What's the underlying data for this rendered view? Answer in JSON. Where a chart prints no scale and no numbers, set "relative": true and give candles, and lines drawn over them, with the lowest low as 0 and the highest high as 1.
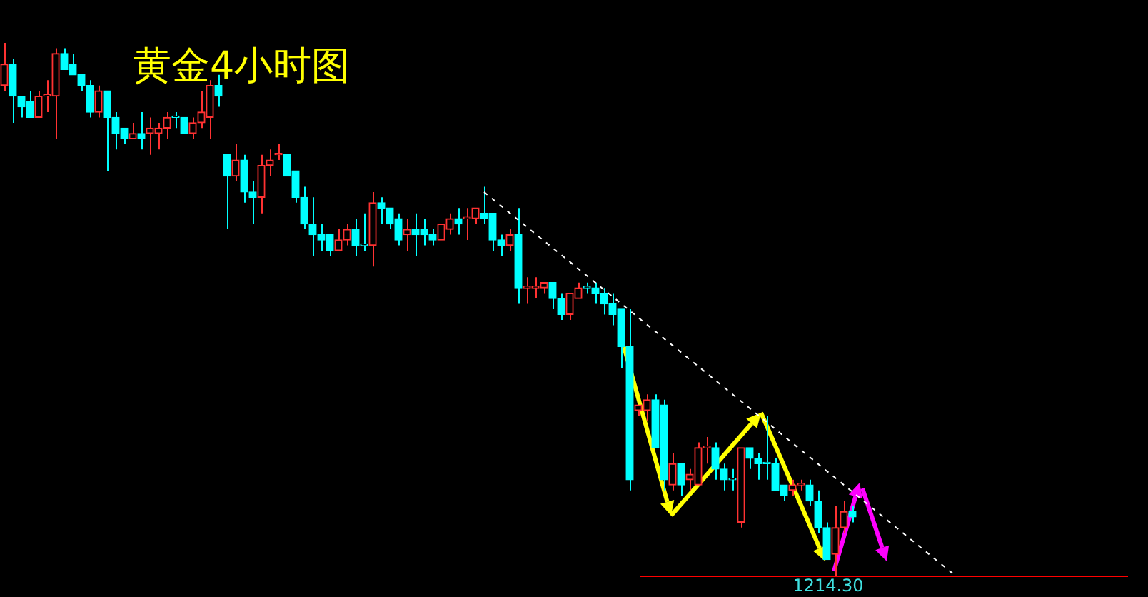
{
  "chart_data": {
    "type": "candlestick",
    "title": "黄金4小时图",
    "relative": true,
    "categories": [
      null,
      null,
      null,
      null,
      null,
      null,
      null,
      null,
      null,
      null,
      null,
      null,
      null,
      null,
      null,
      null,
      null,
      null,
      null,
      null,
      null,
      null,
      null,
      null,
      null,
      null,
      null,
      null,
      null,
      null,
      null,
      null,
      null,
      null,
      null,
      null,
      null,
      null,
      null,
      null,
      null,
      null,
      null,
      null,
      null,
      null,
      null,
      null,
      null,
      null,
      null,
      null,
      null,
      null,
      null,
      null,
      null,
      null,
      null,
      null,
      null,
      null,
      null,
      null,
      null,
      null,
      null,
      null,
      null,
      null,
      null,
      null,
      null,
      null,
      null,
      null,
      null,
      null,
      null,
      null,
      null,
      null,
      null,
      null,
      null,
      null,
      null,
      null,
      null,
      null,
      null,
      null,
      null,
      null,
      null,
      null,
      null,
      null,
      null,
      null,
      null,
      null,
      null,
      null,
      null,
      null,
      null,
      null,
      null,
      null,
      null,
      null,
      null,
      null,
      null,
      null,
      null,
      null,
      null,
      null,
      null,
      null,
      null,
      null,
      null,
      null,
      null,
      null,
      null,
      null,
      null,
      null,
      null,
      null
    ],
    "ohlc": [
      [
        0.92,
        1.0,
        0.91,
        0.96
      ],
      [
        0.96,
        0.97,
        0.85,
        0.9
      ],
      [
        0.9,
        0.9,
        0.86,
        0.88
      ],
      [
        0.89,
        0.91,
        0.86,
        0.86
      ],
      [
        0.86,
        0.91,
        0.86,
        0.9
      ],
      [
        0.9,
        0.93,
        0.87,
        0.9
      ],
      [
        0.9,
        0.99,
        0.82,
        0.98
      ],
      [
        0.98,
        0.99,
        0.95,
        0.95
      ],
      [
        0.96,
        0.98,
        0.94,
        0.94
      ],
      [
        0.94,
        0.94,
        0.91,
        0.92
      ],
      [
        0.92,
        0.93,
        0.86,
        0.87
      ],
      [
        0.87,
        0.92,
        0.86,
        0.91
      ],
      [
        0.91,
        0.91,
        0.76,
        0.86
      ],
      [
        0.86,
        0.87,
        0.8,
        0.83
      ],
      [
        0.84,
        0.84,
        0.81,
        0.82
      ],
      [
        0.82,
        0.85,
        0.82,
        0.83
      ],
      [
        0.83,
        0.87,
        0.8,
        0.82
      ],
      [
        0.83,
        0.86,
        0.79,
        0.84
      ],
      [
        0.83,
        0.85,
        0.8,
        0.84
      ],
      [
        0.84,
        0.87,
        0.82,
        0.86
      ],
      [
        0.86,
        0.87,
        0.84,
        0.86
      ],
      [
        0.86,
        0.86,
        0.83,
        0.83
      ],
      [
        0.83,
        0.86,
        0.82,
        0.85
      ],
      [
        0.85,
        0.91,
        0.84,
        0.87
      ],
      [
        0.86,
        0.93,
        0.82,
        0.92
      ],
      [
        0.92,
        0.94,
        0.88,
        0.9
      ],
      [
        0.79,
        0.79,
        0.65,
        0.75
      ],
      [
        0.75,
        0.81,
        0.74,
        0.78
      ],
      [
        0.78,
        0.79,
        0.7,
        0.72
      ],
      [
        0.72,
        0.74,
        0.66,
        0.71
      ],
      [
        0.71,
        0.79,
        0.68,
        0.77
      ],
      [
        0.77,
        0.8,
        0.75,
        0.78
      ],
      [
        0.79,
        0.81,
        0.78,
        0.79
      ],
      [
        0.79,
        0.79,
        0.75,
        0.75
      ],
      [
        0.76,
        0.76,
        0.7,
        0.71
      ],
      [
        0.71,
        0.73,
        0.65,
        0.66
      ],
      [
        0.66,
        0.71,
        0.6,
        0.64
      ],
      [
        0.64,
        0.66,
        0.61,
        0.63
      ],
      [
        0.64,
        0.64,
        0.6,
        0.61
      ],
      [
        0.61,
        0.65,
        0.61,
        0.63
      ],
      [
        0.63,
        0.66,
        0.62,
        0.65
      ],
      [
        0.65,
        0.67,
        0.6,
        0.62
      ],
      [
        0.62,
        0.68,
        0.61,
        0.62
      ],
      [
        0.62,
        0.72,
        0.58,
        0.7
      ],
      [
        0.7,
        0.71,
        0.66,
        0.69
      ],
      [
        0.69,
        0.69,
        0.65,
        0.66
      ],
      [
        0.67,
        0.68,
        0.62,
        0.63
      ],
      [
        0.64,
        0.67,
        0.61,
        0.65
      ],
      [
        0.65,
        0.68,
        0.6,
        0.64
      ],
      [
        0.65,
        0.67,
        0.62,
        0.64
      ],
      [
        0.64,
        0.65,
        0.62,
        0.63
      ],
      [
        0.63,
        0.66,
        0.63,
        0.66
      ],
      [
        0.65,
        0.68,
        0.64,
        0.67
      ],
      [
        0.67,
        0.69,
        0.64,
        0.66
      ],
      [
        0.67,
        0.69,
        0.63,
        0.67
      ],
      [
        0.67,
        0.69,
        0.66,
        0.69
      ],
      [
        0.68,
        0.73,
        0.66,
        0.67
      ],
      [
        0.68,
        0.68,
        0.61,
        0.63
      ],
      [
        0.63,
        0.64,
        0.6,
        0.62
      ],
      [
        0.62,
        0.65,
        0.61,
        0.64
      ],
      [
        0.64,
        0.69,
        0.51,
        0.54
      ],
      [
        0.54,
        0.56,
        0.51,
        0.54
      ],
      [
        0.54,
        0.56,
        0.52,
        0.54
      ],
      [
        0.54,
        0.55,
        0.53,
        0.55
      ],
      [
        0.55,
        0.55,
        0.5,
        0.52
      ],
      [
        0.52,
        0.53,
        0.48,
        0.49
      ],
      [
        0.49,
        0.53,
        0.48,
        0.53
      ],
      [
        0.52,
        0.55,
        0.52,
        0.54
      ],
      [
        0.54,
        0.55,
        0.53,
        0.54
      ],
      [
        0.54,
        0.55,
        0.51,
        0.53
      ],
      [
        0.53,
        0.54,
        0.49,
        0.51
      ],
      [
        0.51,
        0.53,
        0.47,
        0.49
      ],
      [
        0.5,
        0.5,
        0.39,
        0.43
      ],
      [
        0.43,
        0.5,
        0.16,
        0.18
      ],
      [
        0.31,
        0.32,
        0.3,
        0.32
      ],
      [
        0.31,
        0.34,
        0.29,
        0.33
      ],
      [
        0.33,
        0.34,
        0.24,
        0.24
      ],
      [
        0.32,
        0.33,
        0.16,
        0.18
      ],
      [
        0.17,
        0.23,
        0.16,
        0.21
      ],
      [
        0.21,
        0.21,
        0.15,
        0.17
      ],
      [
        0.18,
        0.2,
        0.16,
        0.19
      ],
      [
        0.17,
        0.25,
        0.17,
        0.24
      ],
      [
        0.24,
        0.26,
        0.21,
        0.24
      ],
      [
        0.24,
        0.25,
        0.18,
        0.2
      ],
      [
        0.2,
        0.21,
        0.16,
        0.18
      ],
      [
        0.18,
        0.2,
        0.16,
        0.18
      ],
      [
        0.1,
        0.24,
        0.09,
        0.24
      ],
      [
        0.24,
        0.24,
        0.2,
        0.22
      ],
      [
        0.22,
        0.23,
        0.18,
        0.21
      ],
      [
        0.21,
        0.3,
        0.18,
        0.21
      ],
      [
        0.21,
        0.22,
        0.16,
        0.16
      ],
      [
        0.17,
        0.17,
        0.14,
        0.15
      ],
      [
        0.16,
        0.18,
        0.15,
        0.17
      ],
      [
        0.17,
        0.18,
        0.16,
        0.17
      ],
      [
        0.17,
        0.18,
        0.13,
        0.14
      ],
      [
        0.14,
        0.16,
        0.08,
        0.09
      ],
      [
        0.09,
        0.1,
        0.03,
        0.03
      ],
      [
        0.04,
        0.13,
        0.0,
        0.09
      ],
      [
        0.09,
        0.14,
        0.08,
        0.12
      ],
      [
        0.12,
        0.13,
        0.1,
        0.11
      ],
      null,
      null,
      null,
      null,
      null,
      null,
      null,
      null,
      null,
      null,
      null,
      null,
      null,
      null,
      null,
      null,
      null,
      null,
      null,
      null,
      null,
      null,
      null,
      null,
      null,
      null,
      null,
      null,
      null,
      null,
      null,
      null,
      null,
      null
    ],
    "colors": [
      "#ff3232",
      "#00ffff",
      "#00ffff",
      "#00ffff",
      "#ff3232",
      "#ff3232",
      "#ff3232",
      "#00ffff",
      "#00ffff",
      "#00ffff",
      "#00ffff",
      "#ff3232",
      "#00ffff",
      "#00ffff",
      "#00ffff",
      "#ff3232",
      "#00ffff",
      "#ff3232",
      "#ff3232",
      "#ff3232",
      "#00ffff",
      "#00ffff",
      "#ff3232",
      "#ff3232",
      "#ff3232",
      "#00ffff",
      "#00ffff",
      "#ff3232",
      "#00ffff",
      "#00ffff",
      "#ff3232",
      "#ff3232",
      "#ff3232",
      "#00ffff",
      "#00ffff",
      "#00ffff",
      "#00ffff",
      "#00ffff",
      "#00ffff",
      "#ff3232",
      "#ff3232",
      "#00ffff",
      "#00ffff",
      "#ff3232",
      "#00ffff",
      "#00ffff",
      "#00ffff",
      "#ff3232",
      "#00ffff",
      "#00ffff",
      "#00ffff",
      "#ff3232",
      "#ff3232",
      "#00ffff",
      "#ff3232",
      "#ff3232",
      "#00ffff",
      "#00ffff",
      "#00ffff",
      "#ff3232",
      "#00ffff",
      "#ff3232",
      "#ff3232",
      "#ff3232",
      "#00ffff",
      "#00ffff",
      "#ff3232",
      "#ff3232",
      "#00ffff",
      "#00ffff",
      "#00ffff",
      "#00ffff",
      "#00ffff",
      "#00ffff",
      "#ff3232",
      "#ff3232",
      "#00ffff",
      "#00ffff",
      "#ff3232",
      "#00ffff",
      "#ff3232",
      "#ff3232",
      "#ff3232",
      "#00ffff",
      "#00ffff",
      "#00ffff",
      "#ff3232",
      "#00ffff",
      "#00ffff",
      "#00ffff",
      "#00ffff",
      "#00ffff",
      "#ff3232",
      "#ff3232",
      "#00ffff",
      "#00ffff",
      "#00ffff",
      "#ff3232",
      "#ff3232",
      "#00ffff",
      null,
      null,
      null,
      null,
      null,
      null,
      null,
      null,
      null,
      null,
      null,
      null,
      null,
      null,
      null,
      null,
      null,
      null,
      null,
      null,
      null,
      null,
      null,
      null,
      null,
      null,
      null,
      null,
      null,
      null,
      null,
      null,
      null,
      null
    ],
    "series": [
      {
        "type": "line",
        "color": "#ffffff",
        "line_style": "dashed",
        "values": [
          null,
          null,
          null,
          null,
          null,
          null,
          null,
          null,
          null,
          null,
          null,
          null,
          null,
          null,
          null,
          null,
          null,
          null,
          null,
          null,
          null,
          null,
          null,
          null,
          null,
          null,
          null,
          null,
          null,
          null,
          null,
          null,
          null,
          null,
          null,
          null,
          null,
          null,
          null,
          null,
          null,
          null,
          null,
          null,
          null,
          null,
          null,
          null,
          null,
          null,
          null,
          null,
          null,
          null,
          null,
          null,
          0.72,
          null,
          null,
          null,
          null,
          null,
          null,
          null,
          null,
          null,
          null,
          null,
          null,
          null,
          null,
          null,
          null,
          null,
          null,
          null,
          null,
          null,
          null,
          null,
          null,
          null,
          null,
          null,
          null,
          null,
          null,
          null,
          null,
          null,
          null,
          null,
          null,
          null,
          null,
          null,
          null,
          null,
          null,
          null,
          null,
          null,
          null,
          null,
          null,
          null,
          null,
          null,
          null,
          null,
          null,
          0,
          null,
          null,
          null,
          null,
          null,
          null,
          null,
          null,
          null,
          null,
          null,
          null,
          null,
          null,
          null,
          null,
          null,
          null,
          null,
          null,
          null,
          null
        ]
      }
    ],
    "ref_lines": [
      {
        "axis": "y",
        "value": 0,
        "color": "#ff0000"
      }
    ],
    "annotations": [
      "1214.30"
    ]
  }
}
